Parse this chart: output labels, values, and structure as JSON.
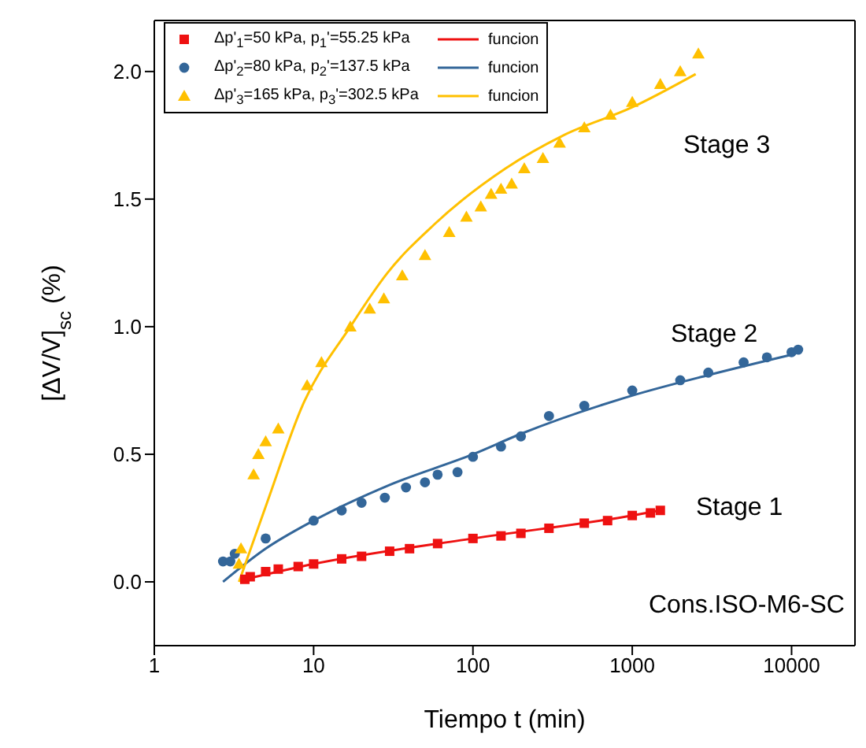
{
  "chart_data": {
    "type": "scatter",
    "xlabel": "Tiempo t (min)",
    "ylabel": "[ΔV/V]$_{sc}$ (%)",
    "log": "x",
    "xlim": [
      1,
      25000
    ],
    "xticks": [
      1,
      10,
      100,
      1000,
      10000
    ],
    "ylim": [
      -0.25,
      2.2
    ],
    "yticks": [
      {
        "value": 0,
        "label": "0.0"
      },
      0.5,
      {
        "value": 1,
        "label": "1.0"
      },
      1.5,
      {
        "value": 2,
        "label": "2.0"
      }
    ],
    "legend": "top left",
    "series": [
      {
        "name": "Δp'$_{1}$=50 kPa, p$_{1}$'=55.25 kPa",
        "marker": "square",
        "color": "#ee1111",
        "x": [
          3.7,
          4,
          5,
          6,
          8,
          10,
          15,
          20,
          30,
          40,
          60,
          100,
          150,
          200,
          300,
          500,
          700,
          1000,
          1300,
          1500
        ],
        "values": [
          0.01,
          0.02,
          0.04,
          0.05,
          0.06,
          0.07,
          0.09,
          0.1,
          0.12,
          0.13,
          0.15,
          0.17,
          0.18,
          0.19,
          0.21,
          0.23,
          0.24,
          0.26,
          0.27,
          0.28
        ]
      },
      {
        "name": "funcion",
        "type": "line",
        "marker": "none",
        "color": "#ee1111",
        "x": [
          3.7,
          10,
          100,
          1000,
          1500
        ],
        "values": [
          0.01,
          0.07,
          0.17,
          0.26,
          0.28
        ]
      },
      {
        "name": "Δp'$_{2}$=80 kPa, p$_{2}$'=137.5 kPa",
        "marker": "circle",
        "color": "#336699",
        "x": [
          2.7,
          3,
          3.2,
          5,
          10,
          15,
          20,
          28,
          38,
          50,
          60,
          80,
          100,
          150,
          200,
          300,
          500,
          1000,
          2000,
          3000,
          5000,
          7000,
          10000,
          11000
        ],
        "values": [
          0.08,
          0.08,
          0.11,
          0.17,
          0.24,
          0.28,
          0.31,
          0.33,
          0.37,
          0.39,
          0.42,
          0.43,
          0.49,
          0.53,
          0.57,
          0.65,
          0.69,
          0.75,
          0.79,
          0.82,
          0.86,
          0.88,
          0.9,
          0.91
        ]
      },
      {
        "name": "funcion",
        "type": "line",
        "marker": "none",
        "color": "#336699",
        "x": [
          2.7,
          5,
          10,
          30,
          100,
          200,
          1000,
          3000,
          10000
        ],
        "values": [
          0.0,
          0.13,
          0.24,
          0.38,
          0.5,
          0.58,
          0.73,
          0.81,
          0.89
        ]
      },
      {
        "name": "Δp'$_{3}$=165 kPa, p$_{3}$'=302.5 kPa",
        "marker": "triangle",
        "color": "#ffc000",
        "x": [
          3.4,
          3.5,
          4.2,
          4.5,
          5,
          6,
          9.1,
          11.2,
          17,
          22.5,
          27.6,
          36,
          50,
          71,
          91,
          112,
          130,
          150,
          175,
          210,
          275,
          350,
          500,
          730,
          1000,
          1500,
          2000,
          2600
        ],
        "values": [
          0.07,
          0.13,
          0.42,
          0.5,
          0.55,
          0.6,
          0.77,
          0.86,
          1.0,
          1.07,
          1.11,
          1.2,
          1.28,
          1.37,
          1.43,
          1.47,
          1.52,
          1.54,
          1.56,
          1.62,
          1.66,
          1.72,
          1.78,
          1.83,
          1.88,
          1.95,
          2.0,
          2.07
        ]
      },
      {
        "name": "funcion",
        "type": "line",
        "marker": "none",
        "color": "#ffc000",
        "x": [
          3.4,
          5.1,
          8.5,
          17,
          29,
          57,
          160,
          370,
          1000,
          2500
        ],
        "values": [
          0.0,
          0.31,
          0.69,
          1.0,
          1.21,
          1.4,
          1.62,
          1.75,
          1.86,
          1.99
        ]
      }
    ],
    "annotations": [
      "Stage 3",
      "Stage 2",
      "Stage 1",
      "Cons.ISO-M6-SC"
    ]
  }
}
